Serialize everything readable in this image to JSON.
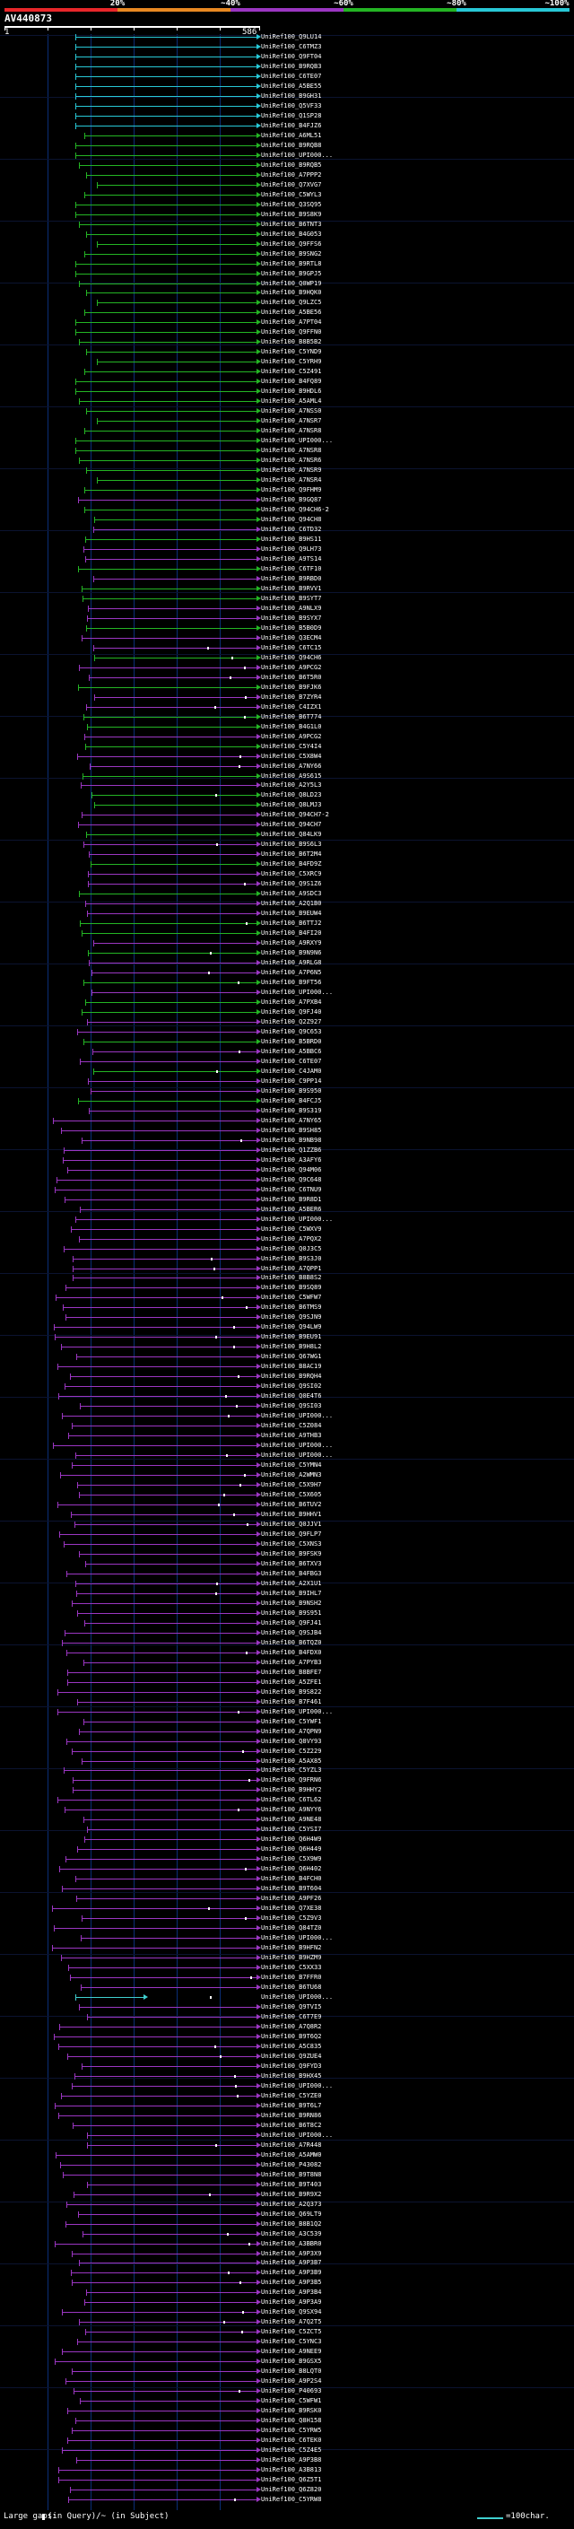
{
  "legend": {
    "labels": [
      "20%",
      "~40%",
      "~60%",
      "~80%",
      "~100%"
    ],
    "colors": [
      "#e8262a",
      "#e88822",
      "#9b36c2",
      "#24b524",
      "#28c8d6"
    ]
  },
  "query": {
    "title": "AV440873",
    "start": "1",
    "end": "586"
  },
  "hits": {
    "labels": [
      "UniRef100_Q9LU14",
      "UniRef100_C6TMZ3",
      "UniRef100_Q9FT04",
      "UniRef100_B9RQB3",
      "UniRef100_C6TE07",
      "UniRef100_A5BE55",
      "UniRef100_B9GH31",
      "UniRef100_Q5VF33",
      "UniRef100_Q1SP28",
      "UniRef100_B4FJZ6",
      "UniRef100_A6ML51",
      "UniRef100_B9RQB8",
      "UniRef100_UPI000...",
      "UniRef100_B9RQB5",
      "UniRef100_A7PPP2",
      "UniRef100_Q7XVG7",
      "UniRef100_C5WYL3",
      "UniRef100_Q3SQ95",
      "UniRef100_B9S8K9",
      "UniRef100_B6TNT3",
      "UniRef100_B4G053",
      "UniRef100_Q9FFS6",
      "UniRef100_B9SNG2",
      "UniRef100_B9RTL8",
      "UniRef100_B9GPJ5",
      "UniRef100_Q0WP19",
      "UniRef100_B9HQK0",
      "UniRef100_Q9LZC5",
      "UniRef100_A5BE56",
      "UniRef100_A7PT04",
      "UniRef100_Q9FFN0",
      "UniRef100_B8B5B2",
      "UniRef100_C5YND9",
      "UniRef100_C5YRH9",
      "UniRef100_C5Z491",
      "UniRef100_B4FQ89",
      "UniRef100_B9HDL6",
      "UniRef100_A5AML4",
      "UniRef100_A7NSS0",
      "UniRef100_A7NSR7",
      "UniRef100_A7NSR8",
      "UniRef100_UPI000...",
      "UniRef100_A7NSR8",
      "UniRef100_A7NSR6",
      "UniRef100_A7NSR9",
      "UniRef100_A7NSR4",
      "UniRef100_Q9FHM9",
      "UniRef100_B9GQ87",
      "UniRef100_Q94CH6-2",
      "UniRef100_Q94CH8",
      "UniRef100_C6TD32",
      "UniRef100_B9HS11",
      "UniRef100_Q9LH73",
      "UniRef100_A9TS14",
      "UniRef100_C6TF10",
      "UniRef100_B9RBD0",
      "UniRef100_B9RVV1",
      "UniRef100_B9SYT7",
      "UniRef100_A9NLX9",
      "UniRef100_B9SYX7",
      "UniRef100_B5B0D9",
      "UniRef100_Q3ECM4",
      "UniRef100_C6TC15",
      "UniRef100_Q94CH6",
      "UniRef100_A9PCG2",
      "UniRef100_B6T5R0",
      "UniRef100_B9FJK6",
      "UniRef100_B7ZYR4",
      "UniRef100_C4IZX1",
      "UniRef100_B6T774",
      "UniRef100_B4G1L0",
      "UniRef100_A9PCG2",
      "UniRef100_C5Y4I4",
      "UniRef100_C5X8W4",
      "UniRef100_A7NY66",
      "UniRef100_A9S615",
      "UniRef100_A2Y5L3",
      "UniRef100_Q8LD23",
      "UniRef100_Q8LMJ3",
      "UniRef100_Q94CH7-2",
      "UniRef100_Q94CH7",
      "UniRef100_Q84LK9",
      "UniRef100_B9S6L3",
      "UniRef100_B6T2M4",
      "UniRef100_B4FD9Z",
      "UniRef100_C5XRC9",
      "UniRef100_Q9S1Z6",
      "UniRef100_A9SDC3",
      "UniRef100_A2Q1B0",
      "UniRef100_B9EUW4",
      "UniRef100_B6TTJ2",
      "UniRef100_B4FI20",
      "UniRef100_A9RXY9",
      "UniRef100_B9N9N6",
      "UniRef100_A9RLG8",
      "UniRef100_A7P6N5",
      "UniRef100_B9FT56",
      "UniRef100_UPI000...",
      "UniRef100_A7PXB4",
      "UniRef100_Q9FJ40",
      "UniRef100_Q2Z927",
      "UniRef100_Q9C653",
      "UniRef100_B5BRD0",
      "UniRef100_A5BBC6",
      "UniRef100_C6TE07",
      "UniRef100_C4JAM0",
      "UniRef100_C9PP14",
      "UniRef100_B9S950",
      "UniRef100_B4FCJ5",
      "UniRef100_B9S319",
      "UniRef100_A7NY65",
      "UniRef100_B9SH85",
      "UniRef100_B9NB98",
      "UniRef100_Q1ZZB6",
      "UniRef100_A3AFY6",
      "UniRef100_Q94M06",
      "UniRef100_Q9C648",
      "UniRef100_C6TNU9",
      "UniRef100_B9R8D1",
      "UniRef100_A5BER6",
      "UniRef100_UPI000...",
      "UniRef100_C5WXV9",
      "UniRef100_A7PQX2",
      "UniRef100_Q0J3C5",
      "UniRef100_B9S3J0",
      "UniRef100_A7QPP1",
      "UniRef100_B8B8S2",
      "UniRef100_B9SQ89",
      "UniRef100_C5WFW7",
      "UniRef100_B6TMS9",
      "UniRef100_Q9SJN9",
      "UniRef100_Q94LW9",
      "UniRef100_B9EU91",
      "UniRef100_B9H8L2",
      "UniRef100_Q67WG1",
      "UniRef100_B8AC19",
      "UniRef100_B9RQH4",
      "UniRef100_Q9SI02",
      "UniRef100_Q0E4T6",
      "UniRef100_Q9SI03",
      "UniRef100_UPI000...",
      "UniRef100_C5Z084",
      "UniRef100_A9THB3",
      "UniRef100_UPI000...",
      "UniRef100_UPI000...",
      "UniRef100_C5YMN4",
      "UniRef100_A2WMN3",
      "UniRef100_C5X9H7",
      "UniRef100_C5X605",
      "UniRef100_B6TUV2",
      "UniRef100_B9HHV1",
      "UniRef100_Q0JJV1",
      "UniRef100_Q9FLP7",
      "UniRef100_C5XNS3",
      "UniRef100_B9FSK9",
      "UniRef100_B6TXV3",
      "UniRef100_B4FBG3",
      "UniRef100_A2X1U1",
      "UniRef100_B9IHL7",
      "UniRef100_B9NSH2",
      "UniRef100_B9S951",
      "UniRef100_Q9FJ41",
      "UniRef100_Q9SJB4",
      "UniRef100_B6TQZ0",
      "UniRef100_B4FDX0",
      "UniRef100_A7PYB3",
      "UniRef100_B8BFE7",
      "UniRef100_A5ZFE1",
      "UniRef100_B9S822",
      "UniRef100_B7F461",
      "UniRef100_UPI000...",
      "UniRef100_C5YWF1",
      "UniRef100_A7QPN9",
      "UniRef100_Q8VY93",
      "UniRef100_C5Z229",
      "UniRef100_A5AX85",
      "UniRef100_C5YZL3",
      "UniRef100_Q9FRN6",
      "UniRef100_B9HHY2",
      "UniRef100_C6TL62",
      "UniRef100_A9NYY6",
      "UniRef100_A9NE48",
      "UniRef100_C5YSI7",
      "UniRef100_Q6H4W9",
      "UniRef100_Q6H449",
      "UniRef100_C5X9W9",
      "UniRef100_Q6H402",
      "UniRef100_B4FCH0",
      "UniRef100_B9T604",
      "UniRef100_A9PF26",
      "UniRef100_Q7XE38",
      "UniRef100_C5Z9V3",
      "UniRef100_Q84TZ0",
      "UniRef100_UPI000...",
      "UniRef100_B9HFN2",
      "UniRef100_B9HZM9",
      "UniRef100_C5XX33",
      "UniRef100_B7FFR0",
      "UniRef100_B6TU68",
      "UniRef100_UPI000...",
      "UniRef100_Q9TVI5",
      "UniRef100_C6T7E9",
      "UniRef100_A7Q8R2",
      "UniRef100_B9T6Q2",
      "UniRef100_A5C835",
      "UniRef100_Q9ZUE4",
      "UniRef100_Q9FYD3",
      "UniRef100_B9HX45",
      "UniRef100_UPI000...",
      "UniRef100_C5YZE0",
      "UniRef100_B9T6L7",
      "UniRef100_B9RN86",
      "UniRef100_B6T8C2",
      "UniRef100_UPI000...",
      "UniRef100_A7R448",
      "UniRef100_A5AMW0",
      "UniRef100_P43082",
      "UniRef100_B9T8N8",
      "UniRef100_B9T403",
      "UniRef100_B9R9X2",
      "UniRef100_A2Q373",
      "UniRef100_Q69LT9",
      "UniRef100_B8B1Q2",
      "UniRef100_A3C539",
      "UniRef100_A3BBR0",
      "UniRef100_A9P3X9",
      "UniRef100_A9P3B7",
      "UniRef100_A9P3B9",
      "UniRef100_A9P3B5",
      "UniRef100_A9P3B4",
      "UniRef100_A9P3A9",
      "UniRef100_Q9SX94",
      "UniRef100_A7Q2T5",
      "UniRef100_C5ZCT5",
      "UniRef100_C5YNC3",
      "UniRef100_A9NEE9",
      "UniRef100_B9GSX5",
      "UniRef100_B8LQT0",
      "UniRef100_A9P2S4",
      "UniRef100_P40693",
      "UniRef100_C5WFW1",
      "UniRef100_B9RSK0",
      "UniRef100_Q8H158",
      "UniRef100_C5YRW5",
      "UniRef100_C6TEK0",
      "UniRef100_C5Z4E5",
      "UniRef100_A9P3B8",
      "UniRef100_A3B813",
      "UniRef100_Q6Z5T1",
      "UniRef100_Q6Z820",
      "UniRef100_C5YRW8"
    ]
  },
  "bottom_legend": {
    "gaps_text": "Large gaps:",
    "query_text": "(in Query)/~ (in Subject)",
    "scale_text": "=100char."
  }
}
